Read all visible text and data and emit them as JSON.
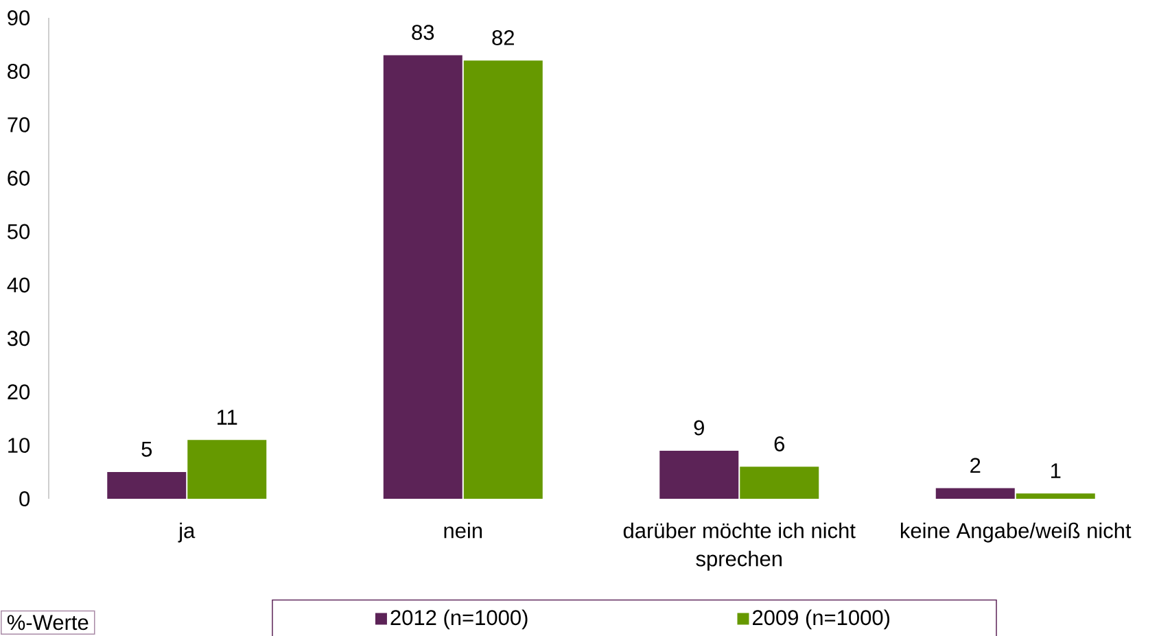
{
  "chart_data": {
    "type": "bar",
    "categories": [
      "ja",
      "nein",
      "darüber möchte ich nicht sprechen",
      "keine Angabe/weiß nicht"
    ],
    "series": [
      {
        "name": "2012 (n=1000)",
        "color": "#5c2357",
        "values": [
          5,
          83,
          9,
          2
        ]
      },
      {
        "name": "2009 (n=1000)",
        "color": "#669900",
        "values": [
          11,
          82,
          6,
          1
        ]
      }
    ],
    "ylim": [
      0,
      90
    ],
    "yticks": [
      0,
      10,
      20,
      30,
      40,
      50,
      60,
      70,
      80,
      90
    ],
    "data_labels": true,
    "legend": "bottom",
    "annotations": [
      "%-Werte"
    ]
  }
}
